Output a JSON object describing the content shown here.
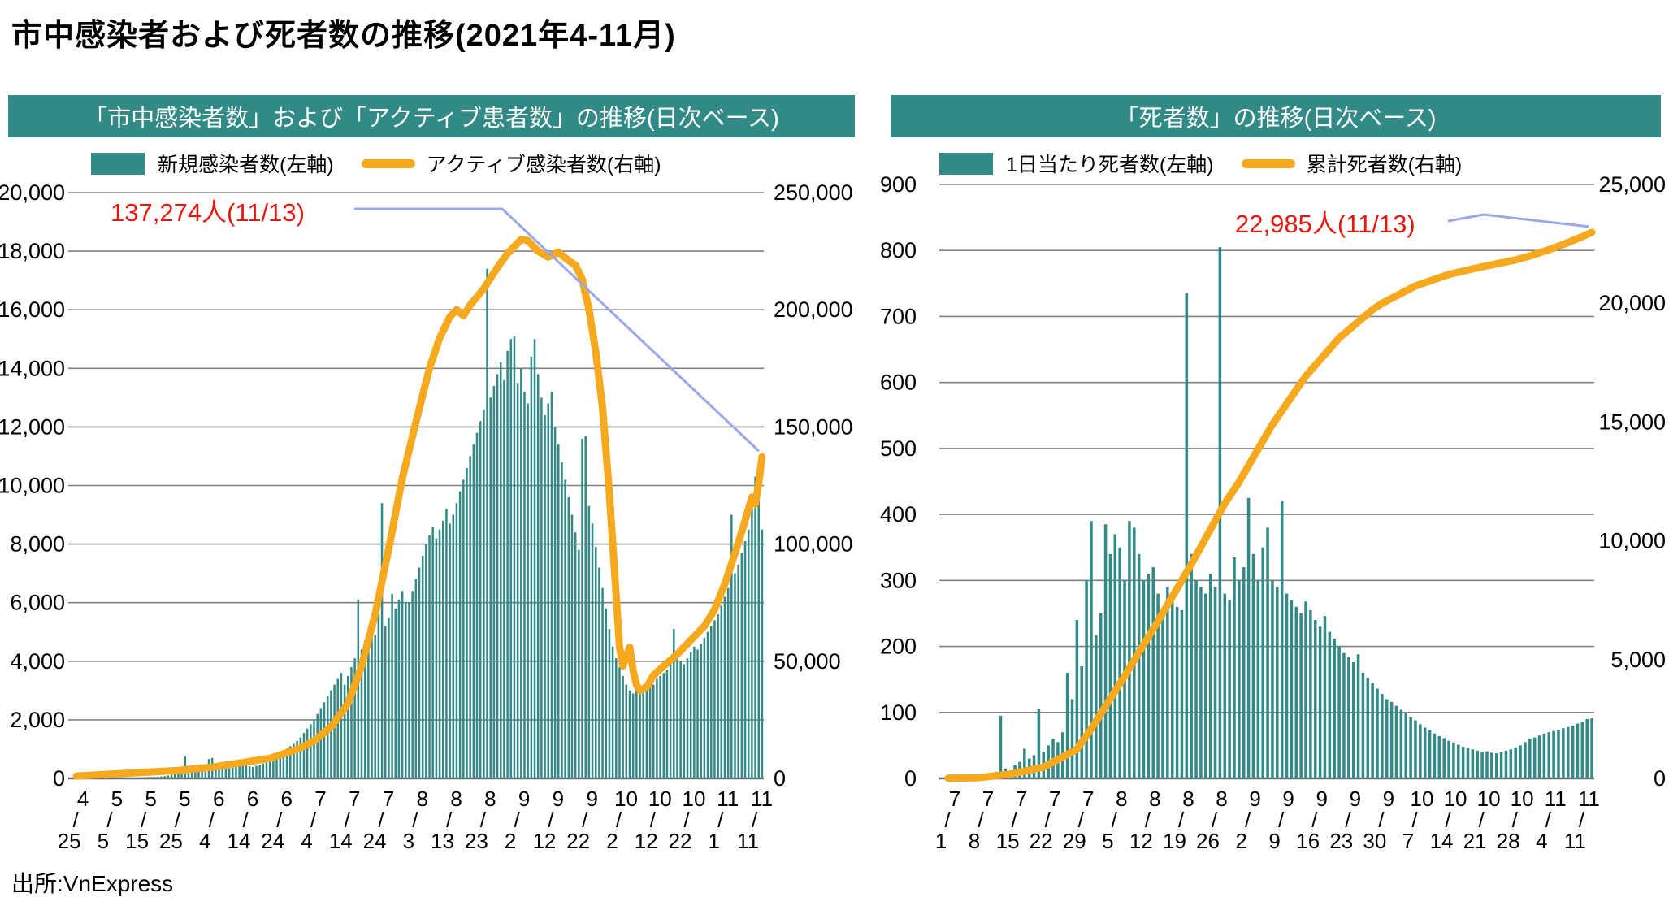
{
  "page": {
    "title": "市中感染者および死者数の推移(2021年4-11月)",
    "source": "出所:VnExpress"
  },
  "colors": {
    "teal_bar": "#318a86",
    "orange_line": "#f6a81e",
    "callout_blue": "#9aa7e8",
    "annotation_red": "#e8170d",
    "gridline": "#808080",
    "header_band": "#318a86",
    "header_text": "#ffffff"
  },
  "chart_data": [
    {
      "type": "bar",
      "title": "「市中感染者数」および「アクティブ患者数」の推移(日次ベース)",
      "start_date": "2021-04-25",
      "end_date": "2021-11-13",
      "grid": true,
      "legend_position": "top",
      "y_left": {
        "min": 0,
        "max": 20000,
        "step": 2000,
        "labels": [
          "0",
          "2,000",
          "4,000",
          "6,000",
          "8,000",
          "10,000",
          "12,000",
          "14,000",
          "16,000",
          "18,000",
          "20,000"
        ]
      },
      "y_right": {
        "min": 0,
        "max": 250000,
        "step": 50000,
        "labels": [
          "0",
          "50,000",
          "100,000",
          "150,000",
          "200,000",
          "250,000"
        ]
      },
      "x_tick_separator": "/",
      "x_ticks": [
        {
          "m": "4",
          "d": "25",
          "i": 0
        },
        {
          "m": "5",
          "d": "5",
          "i": 10
        },
        {
          "m": "5",
          "d": "15",
          "i": 20
        },
        {
          "m": "5",
          "d": "25",
          "i": 30
        },
        {
          "m": "6",
          "d": "4",
          "i": 40
        },
        {
          "m": "6",
          "d": "14",
          "i": 50
        },
        {
          "m": "6",
          "d": "24",
          "i": 60
        },
        {
          "m": "7",
          "d": "4",
          "i": 70
        },
        {
          "m": "7",
          "d": "14",
          "i": 80
        },
        {
          "m": "7",
          "d": "24",
          "i": 90
        },
        {
          "m": "8",
          "d": "3",
          "i": 100
        },
        {
          "m": "8",
          "d": "13",
          "i": 110
        },
        {
          "m": "8",
          "d": "23",
          "i": 120
        },
        {
          "m": "9",
          "d": "2",
          "i": 130
        },
        {
          "m": "9",
          "d": "12",
          "i": 140
        },
        {
          "m": "9",
          "d": "22",
          "i": 150
        },
        {
          "m": "10",
          "d": "2",
          "i": 160
        },
        {
          "m": "10",
          "d": "12",
          "i": 170
        },
        {
          "m": "10",
          "d": "22",
          "i": 180
        },
        {
          "m": "11",
          "d": "1",
          "i": 190
        },
        {
          "m": "11",
          "d": "11",
          "i": 200
        }
      ],
      "bars": {
        "name": "新規感染者数(左軸)",
        "axis": "left",
        "values": [
          8,
          10,
          7,
          12,
          14,
          16,
          12,
          15,
          14,
          18,
          16,
          20,
          24,
          22,
          26,
          30,
          28,
          32,
          30,
          36,
          40,
          44,
          48,
          52,
          58,
          64,
          80,
          100,
          130,
          160,
          200,
          240,
          750,
          300,
          280,
          320,
          350,
          380,
          420,
          660,
          700,
          480,
          430,
          390,
          360,
          340,
          370,
          400,
          430,
          460,
          490,
          410,
          390,
          430,
          470,
          510,
          550,
          700,
          760,
          820,
          880,
          950,
          1020,
          1100,
          1180,
          1280,
          1400,
          1550,
          1700,
          1850,
          2000,
          2200,
          2400,
          2600,
          2800,
          3000,
          3200,
          3400,
          3600,
          3200,
          3500,
          3800,
          4100,
          6100,
          4400,
          4700,
          5000,
          5300,
          4900,
          5600,
          9400,
          5200,
          5500,
          6300,
          5800,
          6100,
          6400,
          6000,
          6000,
          6400,
          6800,
          7200,
          7600,
          8000,
          8300,
          8600,
          8200,
          8500,
          8800,
          9200,
          8700,
          9000,
          9400,
          9800,
          10200,
          10600,
          11000,
          11400,
          11800,
          12200,
          12600,
          17400,
          13000,
          13400,
          13800,
          14200,
          13600,
          14600,
          15000,
          15100,
          13500,
          14000,
          13200,
          12800,
          14400,
          15000,
          13800,
          13000,
          12400,
          12800,
          13200,
          12000,
          11400,
          10800,
          10200,
          9600,
          9000,
          8400,
          7800,
          11600,
          11700,
          9300,
          8700,
          7900,
          7200,
          6500,
          5800,
          5100,
          4500,
          4100,
          3800,
          3500,
          3200,
          3000,
          2900,
          3100,
          3000,
          3200,
          3100,
          3300,
          3200,
          3400,
          3500,
          3600,
          3700,
          3900,
          5100,
          4200,
          4000,
          3900,
          4100,
          4300,
          4500,
          4400,
          4600,
          4800,
          5000,
          5200,
          5400,
          5600,
          5900,
          6200,
          6500,
          9000,
          7000,
          7300,
          7700,
          8100,
          8500,
          9400,
          10300,
          9800,
          8500
        ]
      },
      "line": {
        "name": "アクティブ感染者数(右軸)",
        "axis": "right",
        "points": [
          [
            0,
            1000
          ],
          [
            10,
            1800
          ],
          [
            20,
            2600
          ],
          [
            30,
            3400
          ],
          [
            40,
            4800
          ],
          [
            50,
            7000
          ],
          [
            57,
            8600
          ],
          [
            60,
            10000
          ],
          [
            66,
            13000
          ],
          [
            70,
            16000
          ],
          [
            75,
            22000
          ],
          [
            80,
            32000
          ],
          [
            84,
            48000
          ],
          [
            88,
            70000
          ],
          [
            92,
            98000
          ],
          [
            96,
            128000
          ],
          [
            100,
            152000
          ],
          [
            104,
            175000
          ],
          [
            107,
            188000
          ],
          [
            110,
            197000
          ],
          [
            112,
            200000
          ],
          [
            114,
            197500
          ],
          [
            116,
            202000
          ],
          [
            120,
            209000
          ],
          [
            124,
            218000
          ],
          [
            127,
            224000
          ],
          [
            131,
            230000
          ],
          [
            133,
            229500
          ],
          [
            136,
            225000
          ],
          [
            139,
            222500
          ],
          [
            142,
            224500
          ],
          [
            145,
            221000
          ],
          [
            147,
            219000
          ],
          [
            149,
            213000
          ],
          [
            151,
            200000
          ],
          [
            153,
            182000
          ],
          [
            155,
            158000
          ],
          [
            157,
            122000
          ],
          [
            159,
            78000
          ],
          [
            160,
            56000
          ],
          [
            161,
            48000
          ],
          [
            162,
            52000
          ],
          [
            163,
            56000
          ],
          [
            164,
            46000
          ],
          [
            165,
            40000
          ],
          [
            166,
            37500
          ],
          [
            168,
            39000
          ],
          [
            170,
            44000
          ],
          [
            173,
            48000
          ],
          [
            177,
            53000
          ],
          [
            181,
            59000
          ],
          [
            185,
            65000
          ],
          [
            188,
            72000
          ],
          [
            191,
            83000
          ],
          [
            194,
            96000
          ],
          [
            197,
            110000
          ],
          [
            199,
            120000
          ],
          [
            200,
            117000
          ],
          [
            201,
            126000
          ],
          [
            202,
            137274
          ]
        ]
      },
      "annotation": {
        "text": "137,274人(11/13)",
        "value": 137274,
        "date": "11/13"
      }
    },
    {
      "type": "bar",
      "title": "「死者数」の推移(日次ベース)",
      "start_date": "2021-07-01",
      "end_date": "2021-11-13",
      "grid": true,
      "legend_position": "top",
      "y_left": {
        "min": 0,
        "max": 900,
        "step": 100,
        "labels": [
          "0",
          "100",
          "200",
          "300",
          "400",
          "500",
          "600",
          "700",
          "800",
          "900"
        ]
      },
      "y_right": {
        "min": 0,
        "max": 25000,
        "step": 5000,
        "labels": [
          "0",
          "5,000",
          "10,000",
          "15,000",
          "20,000",
          "25,000"
        ]
      },
      "x_tick_separator": "/",
      "x_ticks": [
        {
          "m": "7",
          "d": "1",
          "i": 0
        },
        {
          "m": "7",
          "d": "8",
          "i": 7
        },
        {
          "m": "7",
          "d": "15",
          "i": 14
        },
        {
          "m": "7",
          "d": "22",
          "i": 21
        },
        {
          "m": "7",
          "d": "29",
          "i": 28
        },
        {
          "m": "8",
          "d": "5",
          "i": 35
        },
        {
          "m": "8",
          "d": "12",
          "i": 42
        },
        {
          "m": "8",
          "d": "19",
          "i": 49
        },
        {
          "m": "8",
          "d": "26",
          "i": 56
        },
        {
          "m": "9",
          "d": "2",
          "i": 63
        },
        {
          "m": "9",
          "d": "9",
          "i": 70
        },
        {
          "m": "9",
          "d": "16",
          "i": 77
        },
        {
          "m": "9",
          "d": "23",
          "i": 84
        },
        {
          "m": "9",
          "d": "30",
          "i": 91
        },
        {
          "m": "10",
          "d": "7",
          "i": 98
        },
        {
          "m": "10",
          "d": "14",
          "i": 105
        },
        {
          "m": "10",
          "d": "21",
          "i": 112
        },
        {
          "m": "10",
          "d": "28",
          "i": 119
        },
        {
          "m": "11",
          "d": "4",
          "i": 126
        },
        {
          "m": "11",
          "d": "11",
          "i": 133
        }
      ],
      "bars": {
        "name": "1日当たり死者数(左軸)",
        "axis": "left",
        "values": [
          2,
          3,
          2,
          4,
          3,
          5,
          4,
          6,
          5,
          8,
          10,
          95,
          15,
          12,
          20,
          25,
          45,
          30,
          35,
          105,
          40,
          50,
          60,
          55,
          70,
          160,
          120,
          240,
          170,
          300,
          390,
          217,
          250,
          385,
          340,
          370,
          350,
          300,
          390,
          380,
          340,
          300,
          310,
          320,
          280,
          250,
          290,
          270,
          260,
          255,
          735,
          340,
          300,
          290,
          280,
          310,
          290,
          805,
          280,
          270,
          335,
          300,
          320,
          425,
          340,
          300,
          350,
          380,
          300,
          290,
          420,
          280,
          270,
          260,
          250,
          268,
          255,
          240,
          230,
          246,
          222,
          212,
          200,
          190,
          184,
          176,
          188,
          160,
          152,
          144,
          136,
          128,
          120,
          116,
          110,
          104,
          99,
          93,
          88,
          82,
          77,
          73,
          68,
          64,
          61,
          57,
          54,
          51,
          48,
          46,
          44,
          42,
          40,
          41,
          39,
          38,
          40,
          42,
          44,
          47,
          50,
          55,
          60,
          62,
          65,
          68,
          70,
          72,
          74,
          76,
          78,
          80,
          83,
          86,
          90,
          91
        ]
      },
      "line": {
        "name": "累計死者数(右軸)",
        "axis": "right",
        "points": [
          [
            0,
            10
          ],
          [
            6,
            23
          ],
          [
            13,
            174
          ],
          [
            20,
            474
          ],
          [
            27,
            1229
          ],
          [
            30,
            2089
          ],
          [
            37,
            4301
          ],
          [
            44,
            6621
          ],
          [
            51,
            9021
          ],
          [
            58,
            11576
          ],
          [
            61,
            12481
          ],
          [
            68,
            14896
          ],
          [
            75,
            16934
          ],
          [
            82,
            18539
          ],
          [
            89,
            19733
          ],
          [
            91,
            19997
          ],
          [
            98,
            20727
          ],
          [
            105,
            21209
          ],
          [
            112,
            21534
          ],
          [
            119,
            21825
          ],
          [
            122,
            21990
          ],
          [
            126,
            22255
          ],
          [
            129,
            22477
          ],
          [
            133,
            22804
          ],
          [
            135,
            22985
          ]
        ]
      },
      "annotation": {
        "text": "22,985人(11/13)",
        "value": 22985,
        "date": "11/13"
      }
    }
  ]
}
